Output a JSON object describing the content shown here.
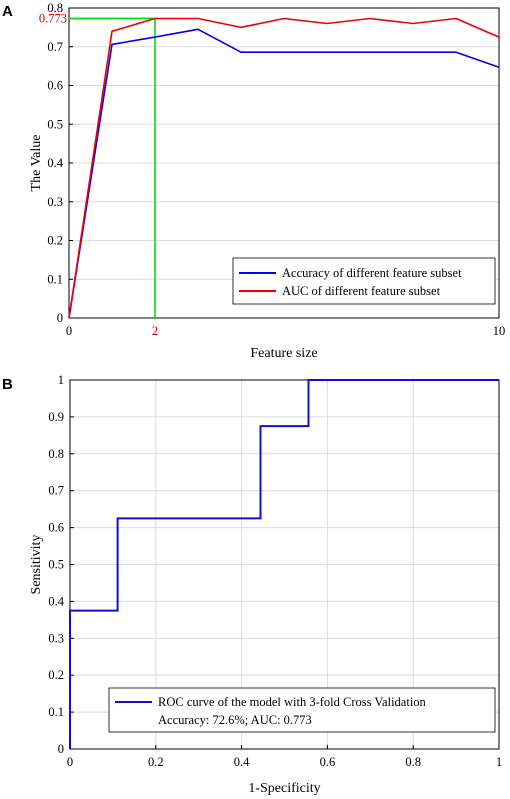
{
  "panels": {
    "a": {
      "letter": "A"
    },
    "b": {
      "letter": "B"
    }
  },
  "colors": {
    "accuracy": "#0000ee",
    "auc": "#ee0000",
    "marker": "#00dd00",
    "roc": "#1010cc",
    "highlight_text": "#d00000",
    "grid": "#dcdcdc"
  },
  "chart_data": [
    {
      "type": "line",
      "title": "",
      "xlabel": "Feature size",
      "ylabel": "The Value",
      "xlim": [
        0,
        10
      ],
      "ylim": [
        0,
        0.8
      ],
      "x_ticks": [
        "0",
        "10"
      ],
      "y_ticks": [
        "0",
        "0.1",
        "0.2",
        "0.3",
        "0.4",
        "0.5",
        "0.6",
        "0.7",
        "0.8"
      ],
      "grid": true,
      "legend_position": "bottom-right",
      "series": [
        {
          "name": "Accuracy of different feature subset",
          "color": "#0000ee",
          "x": [
            0,
            1,
            2,
            3,
            4,
            5,
            6,
            7,
            8,
            9,
            10
          ],
          "y": [
            0,
            0.706,
            0.725,
            0.745,
            0.686,
            0.686,
            0.686,
            0.686,
            0.686,
            0.686,
            0.647
          ]
        },
        {
          "name": "AUC of different feature subset",
          "color": "#ee0000",
          "x": [
            0,
            1,
            2,
            3,
            4,
            5,
            6,
            7,
            8,
            9,
            10
          ],
          "y": [
            0,
            0.74,
            0.773,
            0.773,
            0.75,
            0.773,
            0.76,
            0.773,
            0.76,
            0.773,
            0.725
          ]
        }
      ],
      "annotations": [
        {
          "axis": "y",
          "value": 0.773,
          "label": "0.773"
        },
        {
          "axis": "x",
          "value": 2,
          "label": "2"
        }
      ]
    },
    {
      "type": "line",
      "title": "",
      "xlabel": "1-Specificity",
      "ylabel": "Sensitivity",
      "xlim": [
        0,
        1
      ],
      "ylim": [
        0,
        1
      ],
      "x_ticks": [
        "0",
        "0.2",
        "0.4",
        "0.6",
        "0.8",
        "1"
      ],
      "y_ticks": [
        "0",
        "0.1",
        "0.2",
        "0.3",
        "0.4",
        "0.5",
        "0.6",
        "0.7",
        "0.8",
        "0.9",
        "1"
      ],
      "grid": true,
      "legend_position": "bottom-right",
      "series": [
        {
          "name": "ROC curve of the model with 3-fold Cross Validation",
          "color": "#1010cc",
          "x": [
            0,
            0,
            0.111,
            0.111,
            0.444,
            0.444,
            0.556,
            0.556,
            1
          ],
          "y": [
            0,
            0.375,
            0.375,
            0.625,
            0.625,
            0.875,
            0.875,
            1,
            1
          ]
        }
      ],
      "legend_note": "Accuracy: 72.6%;  AUC: 0.773"
    }
  ]
}
